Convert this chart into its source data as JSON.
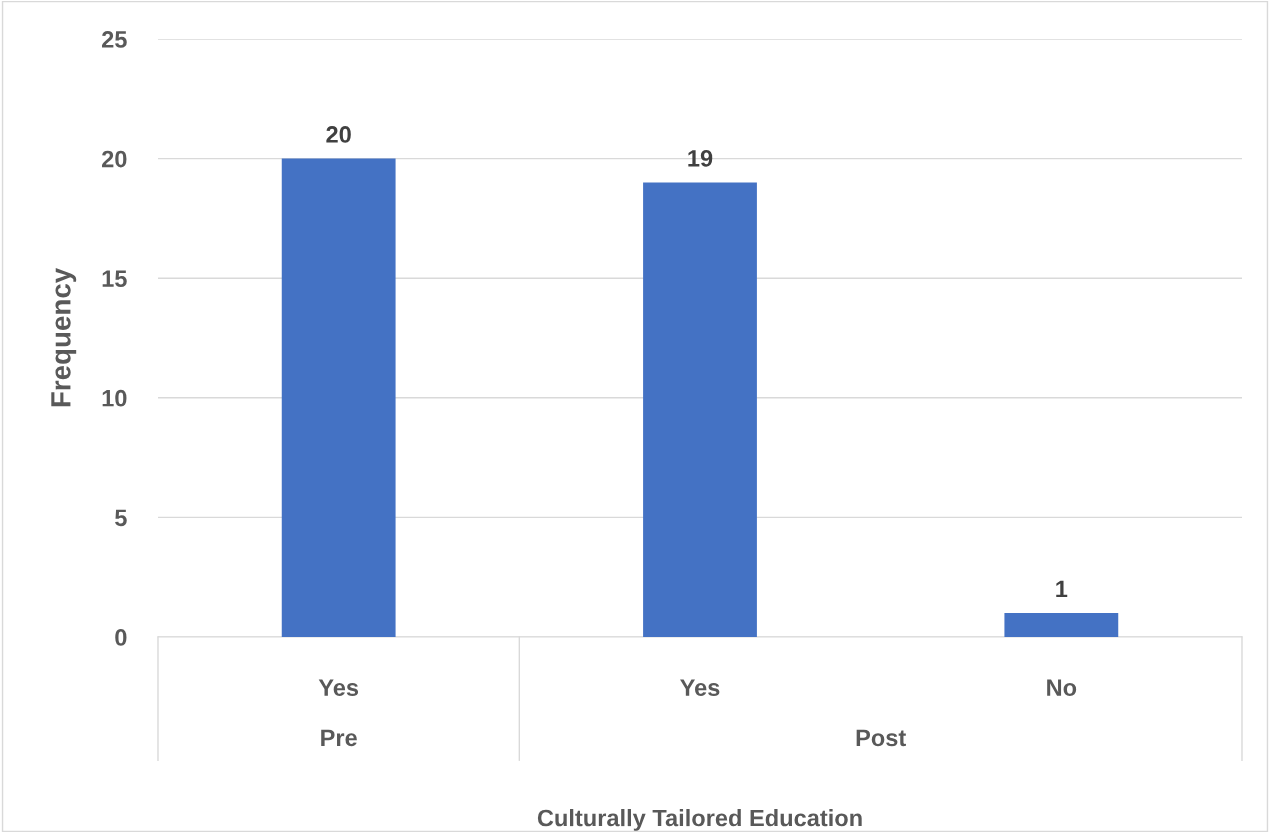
{
  "chart_data": {
    "type": "bar",
    "xlabel": "Culturally Tailored Education",
    "ylabel": "Frequency",
    "categories": [
      "Yes",
      "Yes",
      "No"
    ],
    "values": [
      20,
      19,
      1
    ],
    "color": "#4472c4",
    "ylim": [
      0,
      25
    ],
    "yticks": [
      0,
      5,
      10,
      15,
      20,
      25
    ],
    "grid": "y",
    "data_labels": true,
    "annotations": [
      "Pre",
      "Post"
    ]
  }
}
